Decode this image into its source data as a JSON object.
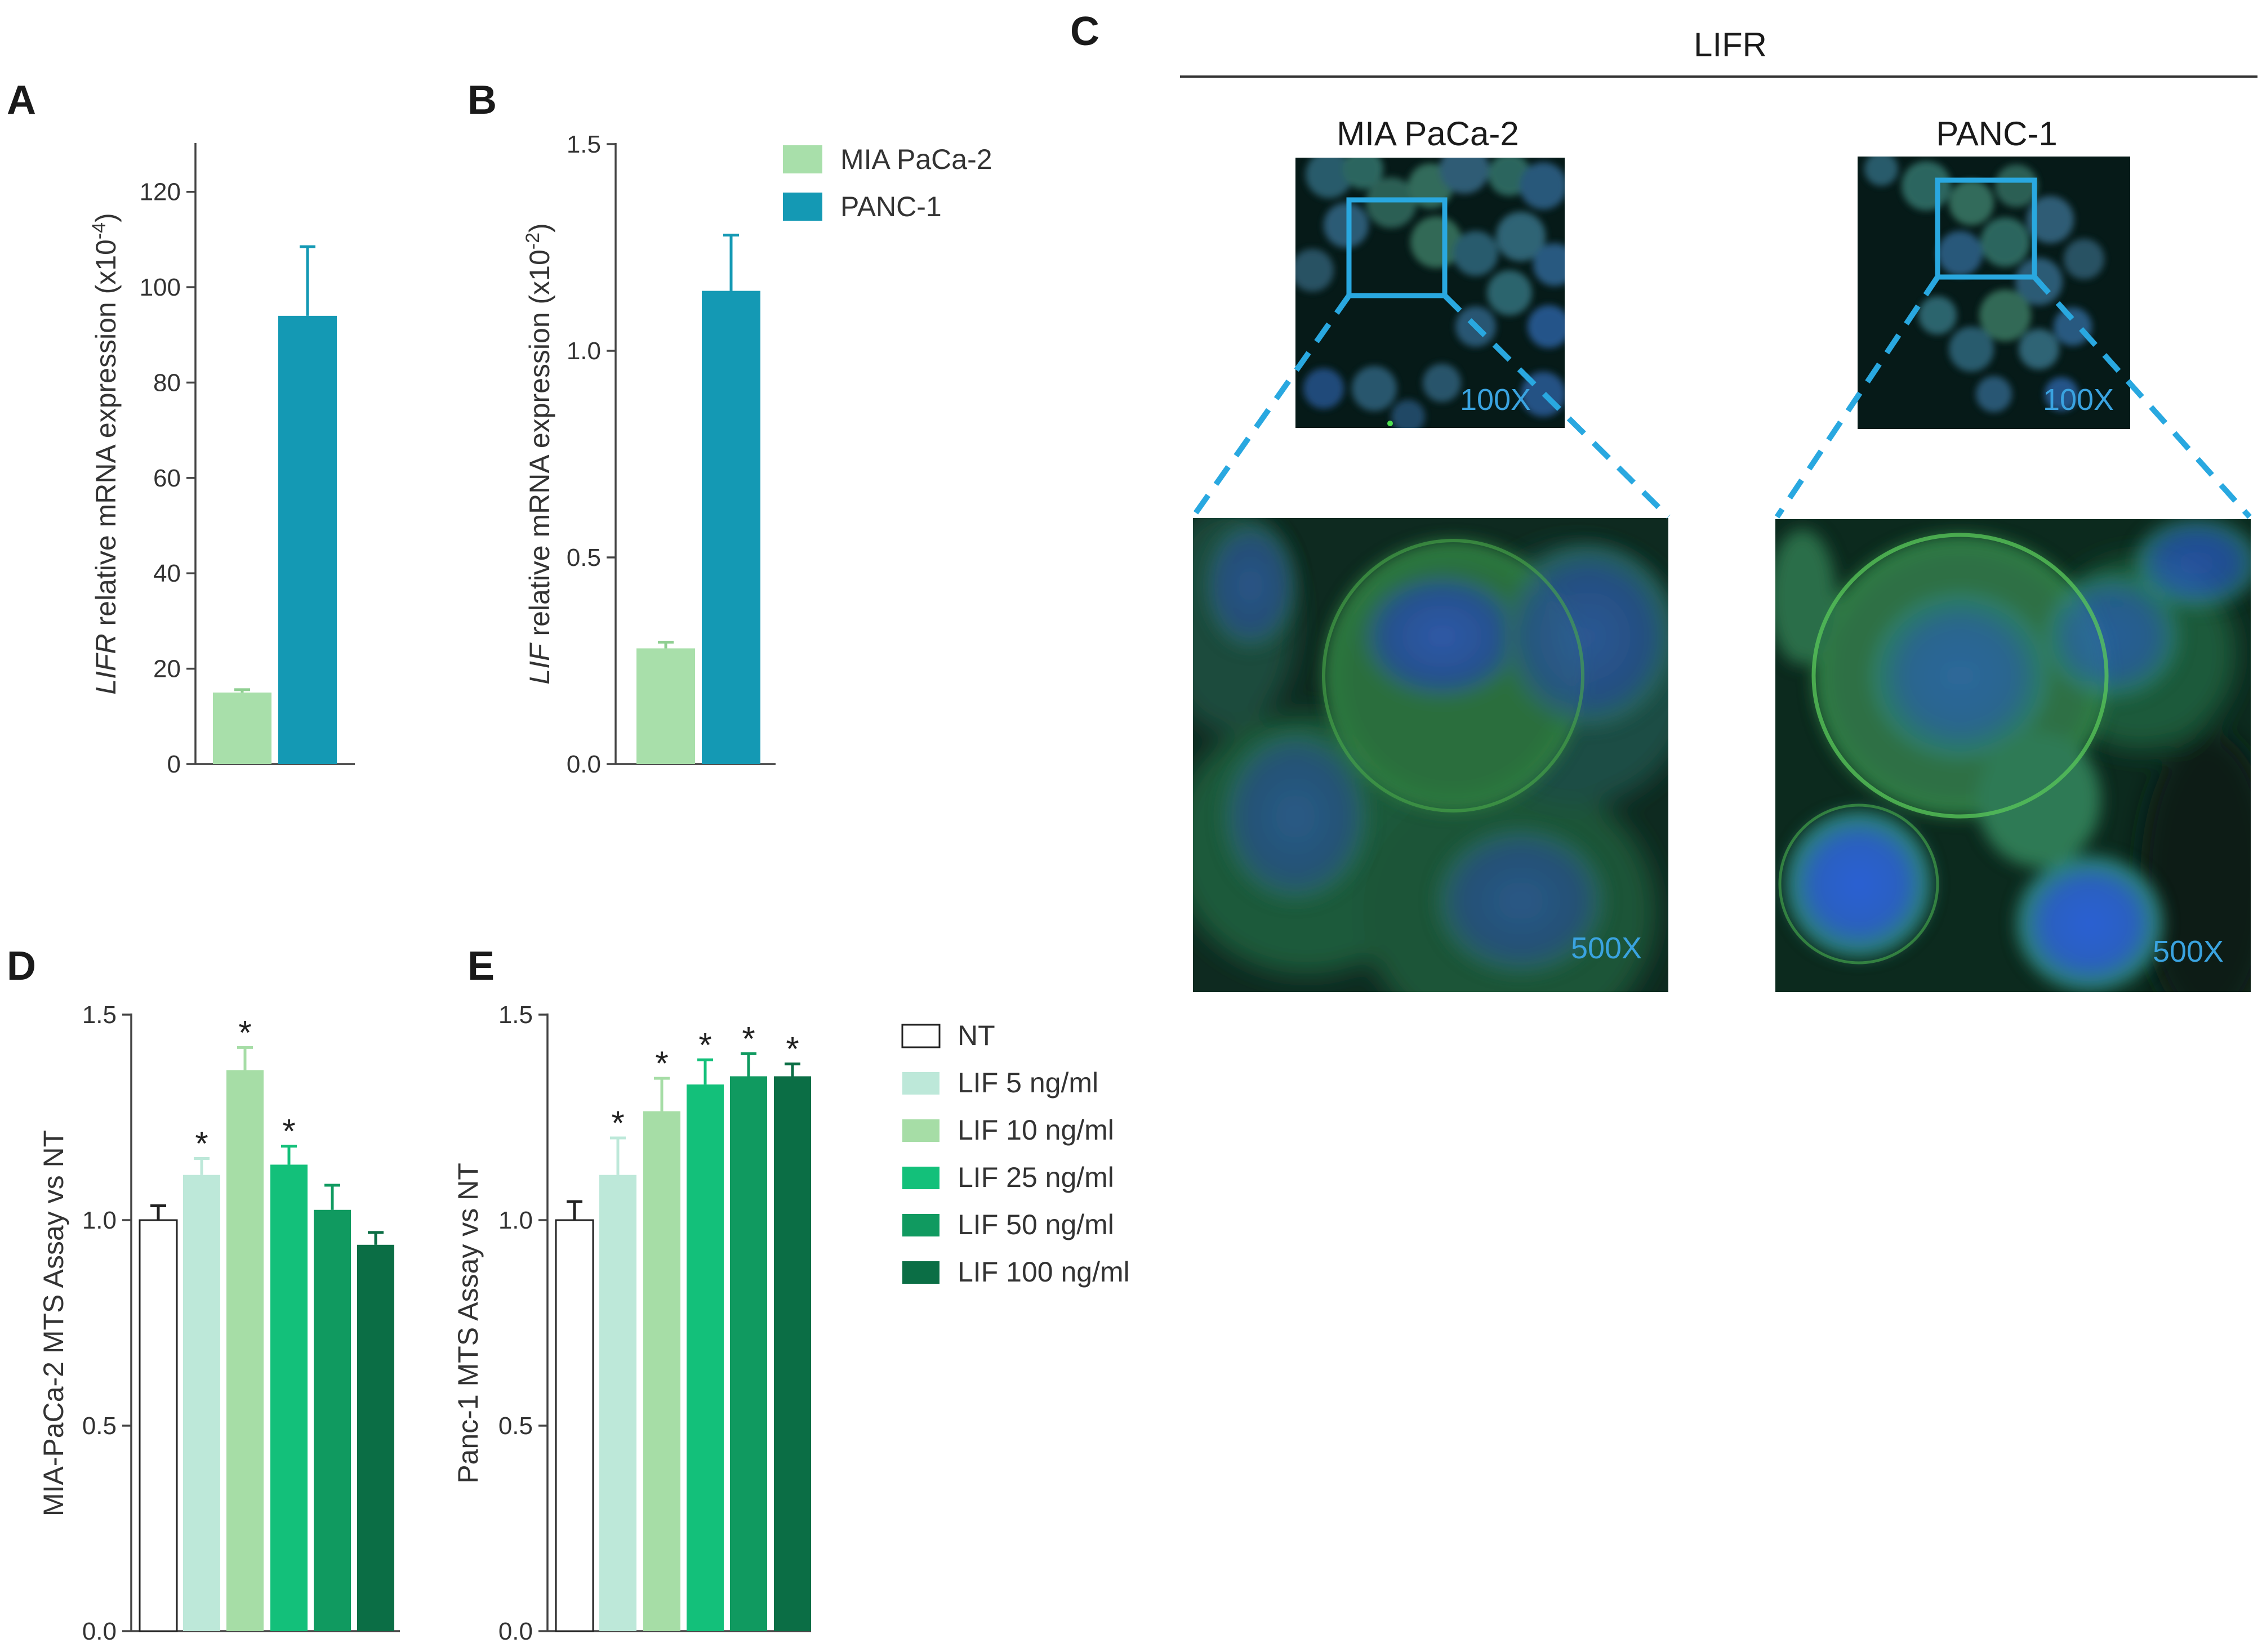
{
  "panel_labels": {
    "a": "A",
    "b": "B",
    "c": "C",
    "d": "D",
    "e": "E"
  },
  "colors": {
    "mia": "#a8dfaa",
    "panc": "#1499b4",
    "err_mia": "#8fcf91",
    "err_panc": "#1499b4",
    "nt": "#ffffff",
    "lif5": "#bde8d9",
    "lif10": "#a6dda6",
    "lif25": "#13c07a",
    "lif50": "#109a60",
    "lif100": "#0b6e45",
    "zoom_line": "#29a8e0"
  },
  "legend_ab": [
    "MIA PaCa-2",
    "PANC-1"
  ],
  "legend_de": [
    "NT",
    "LIF 5 ng/ml",
    "LIF 10 ng/ml",
    "LIF 25 ng/ml",
    "LIF 50 ng/ml",
    "LIF 100 ng/ml"
  ],
  "chart_data": [
    {
      "id": "A",
      "type": "bar",
      "categories": [
        "MIA PaCa-2",
        "PANC-1"
      ],
      "values": [
        15,
        94
      ],
      "errors": [
        0.6,
        14.5
      ],
      "ylabel_italic": "LIFR",
      "ylabel_rest": " relative mRNA expression (x10",
      "ylabel_exp": "-4",
      "ylabel_close": ")",
      "ylim": [
        0,
        130
      ],
      "yticks": [
        0,
        20,
        40,
        60,
        80,
        100,
        120
      ],
      "tick_labels": [
        "0",
        "20",
        "40",
        "60",
        "80",
        "100",
        "120"
      ]
    },
    {
      "id": "B",
      "type": "bar",
      "categories": [
        "MIA PaCa-2",
        "PANC-1"
      ],
      "values": [
        0.28,
        1.145
      ],
      "errors": [
        0.015,
        0.135
      ],
      "ylabel_italic": "LIF",
      "ylabel_rest": " relative mRNA expression (x10",
      "ylabel_exp": "-2",
      "ylabel_close": ")",
      "ylim": [
        0,
        1.5
      ],
      "yticks": [
        0,
        0.5,
        1.0,
        1.5
      ],
      "tick_labels": [
        "0.0",
        "0.5",
        "1.0",
        "1.5"
      ]
    },
    {
      "id": "D",
      "type": "bar",
      "categories": [
        "NT",
        "LIF 5 ng/ml",
        "LIF 10 ng/ml",
        "LIF 25 ng/ml",
        "LIF 50 ng/ml",
        "LIF 100 ng/ml"
      ],
      "values": [
        1.0,
        1.11,
        1.365,
        1.135,
        1.025,
        0.94
      ],
      "errors": [
        0.035,
        0.04,
        0.055,
        0.045,
        0.06,
        0.03
      ],
      "significant": [
        false,
        true,
        true,
        true,
        false,
        false
      ],
      "significance_marker": "*",
      "ylabel": "MIA-PaCa-2 MTS Assay vs NT",
      "ylim": [
        0,
        1.5
      ],
      "yticks": [
        0,
        0.5,
        1.0,
        1.5
      ],
      "tick_labels": [
        "0.0",
        "0.5",
        "1.0",
        "1.5"
      ]
    },
    {
      "id": "E",
      "type": "bar",
      "categories": [
        "NT",
        "LIF 5 ng/ml",
        "LIF 10 ng/ml",
        "LIF 25 ng/ml",
        "LIF 50 ng/ml",
        "LIF 100 ng/ml"
      ],
      "values": [
        1.0,
        1.11,
        1.265,
        1.33,
        1.35,
        1.35
      ],
      "errors": [
        0.045,
        0.09,
        0.08,
        0.06,
        0.055,
        0.03
      ],
      "significant": [
        false,
        true,
        true,
        true,
        true,
        true
      ],
      "significance_marker": "*",
      "ylabel": "Panc-1 MTS Assay vs NT",
      "ylim": [
        0,
        1.5
      ],
      "yticks": [
        0,
        0.5,
        1.0,
        1.5
      ],
      "tick_labels": [
        "0.0",
        "0.5",
        "1.0",
        "1.5"
      ]
    }
  ],
  "panel_c": {
    "title": "LIFR",
    "left_label": "MIA PaCa-2",
    "right_label": "PANC-1",
    "mag_low": "100X",
    "mag_high": "500X"
  }
}
